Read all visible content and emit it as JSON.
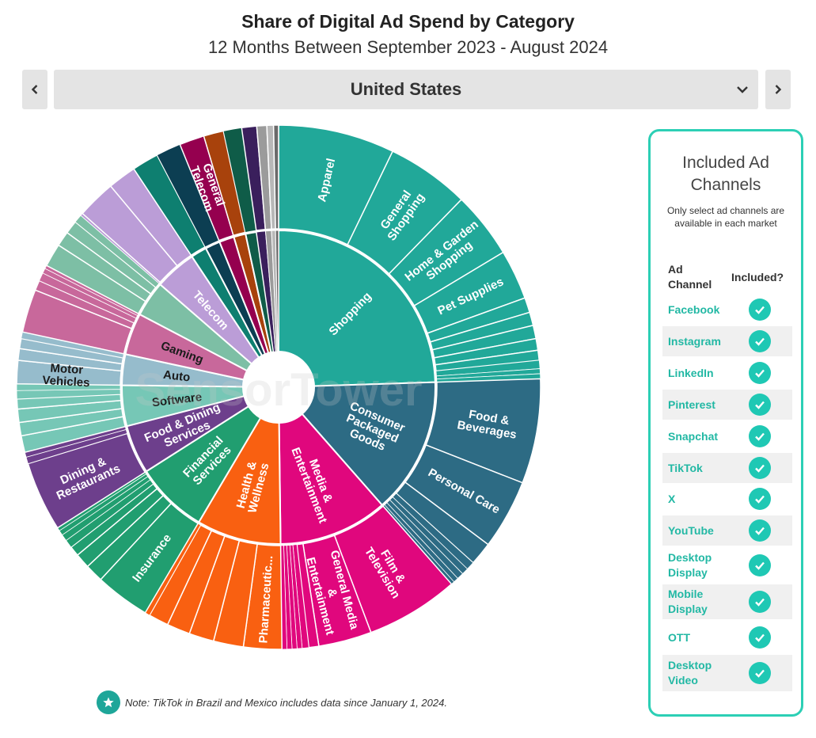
{
  "header": {
    "title": "Share of Digital Ad Spend by Category",
    "subtitle": "12 Months Between September 2023 - August 2024"
  },
  "selector": {
    "value": "United States"
  },
  "watermark": "SensorTower",
  "note": "Note: TikTok in Brazil and Mexico includes data since January 1, 2024.",
  "panel": {
    "title_line1": "Included Ad",
    "title_line2": "Channels",
    "subtitle_line1": "Only select ad channels are",
    "subtitle_line2": "available in each market",
    "col_channel": "Ad Channel",
    "col_included": "Included?",
    "channels": [
      "Facebook",
      "Instagram",
      "LinkedIn",
      "Pinterest",
      "Snapchat",
      "TikTok",
      "X",
      "YouTube",
      "Desktop Display",
      "Mobile Display",
      "OTT",
      "Desktop Video"
    ]
  },
  "colors": {
    "accent": "#2ccfb5",
    "check": "#1fc8b4",
    "Shopping": "#21a899",
    "Consumer Packaged Goods": "#2d6b84",
    "Media & Entertainment": "#e0077d",
    "Health & Wellness": "#f96011",
    "Financial Services": "#219e70",
    "Food & Dining Services": "#6d3f8c",
    "Software": "#76c7b6",
    "Auto": "#96bccc",
    "Gaming": "#c8689b",
    "Telecom": "#bb9dd7"
  },
  "chart_data": {
    "type": "sunburst",
    "title": "Share of Digital Ad Spend by Category",
    "subtitle": "12 Months Between September 2023 - August 2024",
    "market": "United States",
    "inner": [
      {
        "name": "Shopping",
        "value": 23.9
      },
      {
        "name": "Consumer Packaged Goods",
        "value": 13.7
      },
      {
        "name": "Media & Entertainment",
        "value": 11.0
      },
      {
        "name": "Health & Wellness",
        "value": 8.5
      },
      {
        "name": "Financial Services",
        "value": 7.3
      },
      {
        "name": "Food & Dining Services",
        "value": 4.9
      },
      {
        "name": "Software",
        "value": 4.1
      },
      {
        "name": "Auto",
        "value": 3.1
      },
      {
        "name": "Gaming",
        "value": 4.2
      },
      {
        "name": "",
        "value": 3.6
      },
      {
        "name": "Telecom",
        "value": 4.2
      },
      {
        "name": "",
        "value": 1.6
      },
      {
        "name": "",
        "value": 1.5
      },
      {
        "name": "",
        "value": 1.5
      },
      {
        "name": "",
        "value": 1.2
      },
      {
        "name": "",
        "value": 1.1
      },
      {
        "name": "",
        "value": 0.9
      },
      {
        "name": "",
        "value": 0.6
      },
      {
        "name": "",
        "value": 0.4
      },
      {
        "name": "",
        "value": 0.3
      }
    ],
    "outer": [
      {
        "name": "Apparel",
        "value": 7.0
      },
      {
        "name": "General Shopping",
        "value": 5.0
      },
      {
        "name": "Home & Garden Shopping",
        "value": 4.0
      },
      {
        "name": "Pet Supplies",
        "value": 3.0
      },
      {
        "name": "",
        "value": 0.9
      },
      {
        "name": "",
        "value": 0.8
      },
      {
        "name": "",
        "value": 0.8
      },
      {
        "name": "",
        "value": 0.7
      },
      {
        "name": "",
        "value": 0.6
      },
      {
        "name": "",
        "value": 0.5
      },
      {
        "name": "",
        "value": 0.3
      },
      {
        "name": "",
        "value": 0.3
      },
      {
        "name": "Food & Beverages",
        "value": 6.3
      },
      {
        "name": "Personal Care",
        "value": 4.2
      },
      {
        "name": "",
        "value": 1.4
      },
      {
        "name": "",
        "value": 0.5
      },
      {
        "name": "",
        "value": 0.4
      },
      {
        "name": "",
        "value": 0.4
      },
      {
        "name": "",
        "value": 0.3
      },
      {
        "name": "",
        "value": 0.2
      },
      {
        "name": "Film & Television",
        "value": 5.6
      },
      {
        "name": "General Media & Entertainment",
        "value": 3.2
      },
      {
        "name": "",
        "value": 0.6
      },
      {
        "name": "",
        "value": 0.4
      },
      {
        "name": "",
        "value": 0.3
      },
      {
        "name": "",
        "value": 0.3
      },
      {
        "name": "",
        "value": 0.3
      },
      {
        "name": "",
        "value": 0.3
      },
      {
        "name": "Pharmaceutic...",
        "value": 2.3
      },
      {
        "name": "",
        "value": 1.8
      },
      {
        "name": "",
        "value": 1.5
      },
      {
        "name": "",
        "value": 1.4
      },
      {
        "name": "",
        "value": 1.2
      },
      {
        "name": "",
        "value": 0.3
      },
      {
        "name": "Insurance",
        "value": 3.3
      },
      {
        "name": "",
        "value": 1.1
      },
      {
        "name": "",
        "value": 0.9
      },
      {
        "name": "",
        "value": 0.6
      },
      {
        "name": "",
        "value": 0.5
      },
      {
        "name": "",
        "value": 0.4
      },
      {
        "name": "",
        "value": 0.3
      },
      {
        "name": "",
        "value": 0.2
      },
      {
        "name": "Dining & Restaurants",
        "value": 4.2
      },
      {
        "name": "",
        "value": 0.4
      },
      {
        "name": "",
        "value": 0.3
      },
      {
        "name": "",
        "value": 1.0
      },
      {
        "name": "",
        "value": 0.8
      },
      {
        "name": "",
        "value": 0.8
      },
      {
        "name": "",
        "value": 0.6
      },
      {
        "name": "",
        "value": 0.5
      },
      {
        "name": "",
        "value": 0.4
      },
      {
        "name": "Motor Vehicles",
        "value": 1.4
      },
      {
        "name": "",
        "value": 0.7
      },
      {
        "name": "",
        "value": 0.6
      },
      {
        "name": "",
        "value": 0.4
      },
      {
        "name": "",
        "value": 2.6
      },
      {
        "name": "",
        "value": 0.6
      },
      {
        "name": "",
        "value": 0.5
      },
      {
        "name": "",
        "value": 0.3
      },
      {
        "name": "",
        "value": 0.2
      },
      {
        "name": "",
        "value": 1.4
      },
      {
        "name": "",
        "value": 0.9
      },
      {
        "name": "",
        "value": 0.8
      },
      {
        "name": "",
        "value": 0.5
      },
      {
        "name": "",
        "value": 0.1
      },
      {
        "name": "",
        "value": 1.5
      },
      {
        "name": "",
        "value": 1.1
      },
      {
        "name": "",
        "value": 0.6
      },
      {
        "name": "",
        "value": 0.4
      },
      {
        "name": "General Telecom",
        "value": 3.2
      },
      {
        "name": "",
        "value": 0.6
      },
      {
        "name": "",
        "value": 0.4
      },
      {
        "name": "",
        "value": 1.6
      },
      {
        "name": "",
        "value": 1.5
      },
      {
        "name": "",
        "value": 1.5
      },
      {
        "name": "",
        "value": 1.2
      },
      {
        "name": "",
        "value": 1.1
      },
      {
        "name": "",
        "value": 0.9
      },
      {
        "name": "",
        "value": 0.6
      },
      {
        "name": "",
        "value": 0.4
      },
      {
        "name": "",
        "value": 0.3
      }
    ]
  }
}
